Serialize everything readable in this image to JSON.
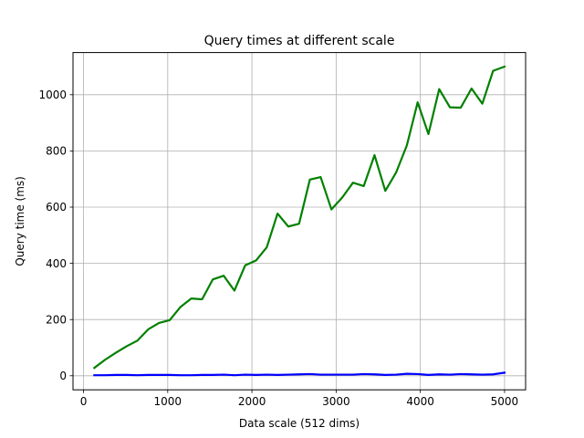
{
  "chart_data": {
    "type": "line",
    "title": "Query times at different scale",
    "xlabel": "Data scale (512 dims)",
    "ylabel": "Query time (ms)",
    "xlim": [
      -125,
      5250
    ],
    "ylim": [
      -50,
      1150
    ],
    "xticks": [
      0,
      1000,
      2000,
      3000,
      4000,
      5000
    ],
    "yticks": [
      0,
      200,
      400,
      600,
      800,
      1000
    ],
    "grid": true,
    "x": [
      128,
      256,
      384,
      512,
      640,
      768,
      896,
      1024,
      1152,
      1280,
      1408,
      1536,
      1664,
      1792,
      1920,
      2048,
      2176,
      2304,
      2432,
      2560,
      2688,
      2816,
      2944,
      3072,
      3200,
      3328,
      3456,
      3584,
      3712,
      3840,
      3968,
      4096,
      4224,
      4352,
      4480,
      4608,
      4736,
      4864,
      5000
    ],
    "series": [
      {
        "color": "#008000",
        "values": [
          28,
          57,
          82,
          105,
          125,
          165,
          188,
          198,
          245,
          275,
          272,
          343,
          356,
          303,
          393,
          410,
          457,
          577,
          531,
          541,
          698,
          707,
          592,
          634,
          687,
          675,
          785,
          658,
          723,
          820,
          973,
          860,
          1020,
          955,
          954,
          1022,
          968,
          1085,
          1100
        ]
      },
      {
        "color": "#0000ff",
        "values": [
          2,
          2,
          3,
          3,
          2,
          3,
          3,
          3,
          2,
          2,
          3,
          3,
          4,
          2,
          4,
          3,
          4,
          3,
          4,
          5,
          6,
          4,
          4,
          4,
          4,
          6,
          5,
          3,
          4,
          7,
          6,
          3,
          5,
          4,
          6,
          5,
          4,
          5,
          11
        ]
      }
    ]
  }
}
